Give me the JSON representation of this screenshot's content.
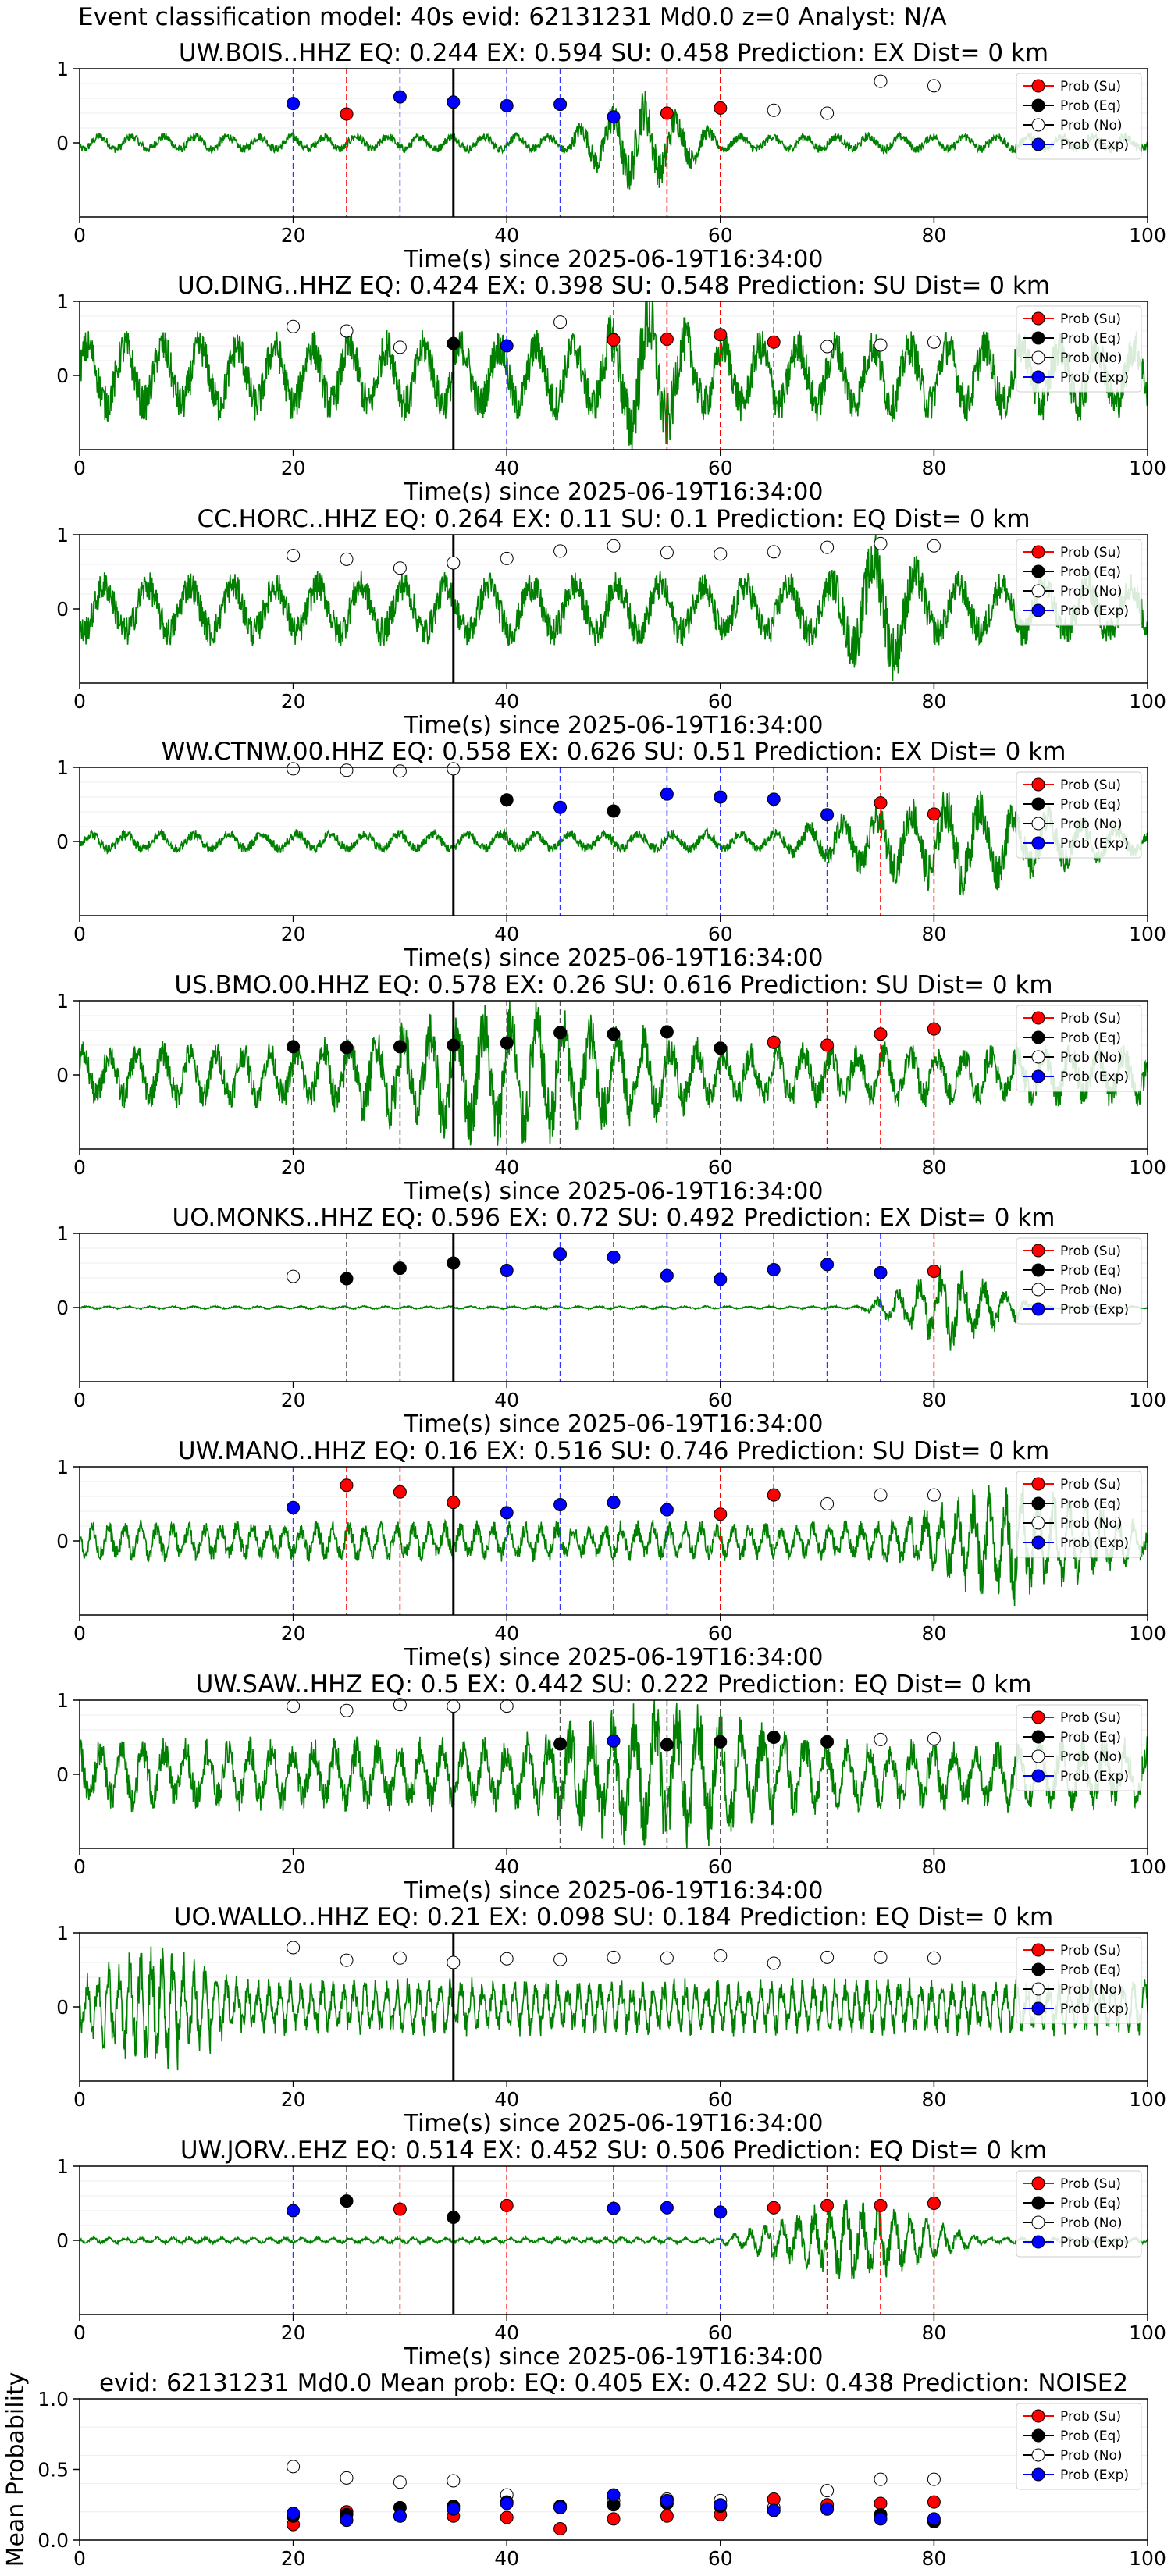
{
  "figure": {
    "suptitle": "Event classification model: 40s evid: 62131231 Md0.0 z=0 Analyst: N/A",
    "colors": {
      "trace": "#008000",
      "su": "#ff0000",
      "eq": "#000000",
      "no": "#ffffff",
      "exp": "#0000ff",
      "origin_line": "#000000"
    },
    "legend_items": [
      "Prob (Su)",
      "Prob (Eq)",
      "Prob (No)",
      "Prob (Exp)"
    ]
  },
  "chart_data": [
    {
      "type": "line",
      "station": "UW.BOIS..HHZ",
      "title": "UW.BOIS..HHZ   EQ: 0.244   EX: 0.594   SU: 0.458   Prediction: EX    Dist= 0 km",
      "xlabel": "Time(s) since 2025-06-19T16:34:00",
      "ylabel": "",
      "xlim": [
        0,
        100
      ],
      "ylim": [
        -1,
        1
      ],
      "xticks": [
        0,
        20,
        40,
        60,
        80,
        100
      ],
      "yticks": [
        0,
        1
      ],
      "origin_time": 35,
      "trace_amp": 0.12,
      "trace_period": 3.0,
      "burst": [
        45,
        60
      ],
      "markers": [
        {
          "x": 20,
          "y": 0.53,
          "cls": "exp"
        },
        {
          "x": 25,
          "y": 0.39,
          "cls": "su"
        },
        {
          "x": 30,
          "y": 0.62,
          "cls": "exp"
        },
        {
          "x": 35,
          "y": 0.55,
          "cls": "exp"
        },
        {
          "x": 40,
          "y": 0.5,
          "cls": "exp"
        },
        {
          "x": 45,
          "y": 0.52,
          "cls": "exp"
        },
        {
          "x": 50,
          "y": 0.35,
          "cls": "exp"
        },
        {
          "x": 55,
          "y": 0.4,
          "cls": "su"
        },
        {
          "x": 60,
          "y": 0.47,
          "cls": "su"
        },
        {
          "x": 65,
          "y": 0.44,
          "cls": "no"
        },
        {
          "x": 70,
          "y": 0.4,
          "cls": "no"
        },
        {
          "x": 75,
          "y": 0.83,
          "cls": "no"
        },
        {
          "x": 80,
          "y": 0.77,
          "cls": "no"
        }
      ]
    },
    {
      "type": "line",
      "station": "UO.DING..HHZ",
      "title": "UO.DING..HHZ   EQ: 0.424   EX: 0.398   SU: 0.548   Prediction: SU    Dist= 0 km",
      "xlabel": "Time(s) since 2025-06-19T16:34:00",
      "ylabel": "",
      "xlim": [
        0,
        100
      ],
      "ylim": [
        -1,
        1
      ],
      "xticks": [
        0,
        20,
        40,
        60,
        80,
        100
      ],
      "yticks": [
        0,
        1
      ],
      "origin_time": 35,
      "trace_amp": 0.55,
      "trace_period": 3.5,
      "burst": [
        48,
        58
      ],
      "markers": [
        {
          "x": 20,
          "y": 0.66,
          "cls": "no"
        },
        {
          "x": 25,
          "y": 0.6,
          "cls": "no"
        },
        {
          "x": 30,
          "y": 0.38,
          "cls": "no"
        },
        {
          "x": 35,
          "y": 0.43,
          "cls": "eq"
        },
        {
          "x": 40,
          "y": 0.4,
          "cls": "exp"
        },
        {
          "x": 45,
          "y": 0.72,
          "cls": "no"
        },
        {
          "x": 50,
          "y": 0.48,
          "cls": "su"
        },
        {
          "x": 55,
          "y": 0.49,
          "cls": "su"
        },
        {
          "x": 60,
          "y": 0.55,
          "cls": "su"
        },
        {
          "x": 65,
          "y": 0.45,
          "cls": "su"
        },
        {
          "x": 70,
          "y": 0.39,
          "cls": "no"
        },
        {
          "x": 75,
          "y": 0.41,
          "cls": "no"
        },
        {
          "x": 80,
          "y": 0.45,
          "cls": "no"
        }
      ]
    },
    {
      "type": "line",
      "station": "CC.HORC..HHZ",
      "title": "CC.HORC..HHZ   EQ: 0.264   EX: 0.11   SU: 0.1   Prediction: EQ    Dist= 0 km",
      "xlabel": "Time(s) since 2025-06-19T16:34:00",
      "ylabel": "",
      "xlim": [
        0,
        100
      ],
      "ylim": [
        -1,
        1
      ],
      "xticks": [
        0,
        20,
        40,
        60,
        80,
        100
      ],
      "yticks": [
        0,
        1
      ],
      "origin_time": 35,
      "trace_amp": 0.45,
      "trace_period": 4.0,
      "burst": [
        70,
        80
      ],
      "markers": [
        {
          "x": 20,
          "y": 0.72,
          "cls": "no"
        },
        {
          "x": 25,
          "y": 0.67,
          "cls": "no"
        },
        {
          "x": 30,
          "y": 0.55,
          "cls": "no"
        },
        {
          "x": 35,
          "y": 0.62,
          "cls": "no"
        },
        {
          "x": 40,
          "y": 0.68,
          "cls": "no"
        },
        {
          "x": 45,
          "y": 0.78,
          "cls": "no"
        },
        {
          "x": 50,
          "y": 0.85,
          "cls": "no"
        },
        {
          "x": 55,
          "y": 0.76,
          "cls": "no"
        },
        {
          "x": 60,
          "y": 0.74,
          "cls": "no"
        },
        {
          "x": 65,
          "y": 0.77,
          "cls": "no"
        },
        {
          "x": 70,
          "y": 0.83,
          "cls": "no"
        },
        {
          "x": 75,
          "y": 0.88,
          "cls": "no"
        },
        {
          "x": 80,
          "y": 0.85,
          "cls": "no"
        }
      ]
    },
    {
      "type": "line",
      "station": "WW.CTNW.00.HHZ",
      "title": "WW.CTNW.00.HHZ   EQ: 0.558   EX: 0.626   SU: 0.51   Prediction: EX    Dist= 0 km",
      "xlabel": "Time(s) since 2025-06-19T16:34:00",
      "ylabel": "",
      "xlim": [
        0,
        100
      ],
      "ylim": [
        -1,
        1
      ],
      "xticks": [
        0,
        20,
        40,
        60,
        80,
        100
      ],
      "yticks": [
        0,
        1
      ],
      "origin_time": 35,
      "trace_amp": 0.14,
      "trace_period": 3.2,
      "burst": [
        65,
        100
      ],
      "markers": [
        {
          "x": 20,
          "y": 0.98,
          "cls": "no"
        },
        {
          "x": 25,
          "y": 0.96,
          "cls": "no"
        },
        {
          "x": 30,
          "y": 0.95,
          "cls": "no"
        },
        {
          "x": 35,
          "y": 0.98,
          "cls": "no"
        },
        {
          "x": 40,
          "y": 0.56,
          "cls": "eq"
        },
        {
          "x": 45,
          "y": 0.46,
          "cls": "exp"
        },
        {
          "x": 50,
          "y": 0.41,
          "cls": "eq"
        },
        {
          "x": 55,
          "y": 0.64,
          "cls": "exp"
        },
        {
          "x": 60,
          "y": 0.6,
          "cls": "exp"
        },
        {
          "x": 65,
          "y": 0.57,
          "cls": "exp"
        },
        {
          "x": 70,
          "y": 0.36,
          "cls": "exp"
        },
        {
          "x": 75,
          "y": 0.52,
          "cls": "su"
        },
        {
          "x": 80,
          "y": 0.37,
          "cls": "su"
        }
      ]
    },
    {
      "type": "line",
      "station": "US.BMO.00.HHZ",
      "title": "US.BMO.00.HHZ   EQ: 0.578   EX: 0.26   SU: 0.616   Prediction: SU    Dist= 0 km",
      "xlabel": "Time(s) since 2025-06-19T16:34:00",
      "ylabel": "",
      "xlim": [
        0,
        100
      ],
      "ylim": [
        -1,
        1
      ],
      "xticks": [
        0,
        20,
        40,
        60,
        80,
        100
      ],
      "yticks": [
        0,
        1
      ],
      "origin_time": 35,
      "trace_amp": 0.4,
      "trace_period": 2.5,
      "burst": [
        20,
        60
      ],
      "markers": [
        {
          "x": 20,
          "y": 0.38,
          "cls": "eq"
        },
        {
          "x": 25,
          "y": 0.37,
          "cls": "eq"
        },
        {
          "x": 30,
          "y": 0.38,
          "cls": "eq"
        },
        {
          "x": 35,
          "y": 0.4,
          "cls": "eq"
        },
        {
          "x": 40,
          "y": 0.43,
          "cls": "eq"
        },
        {
          "x": 45,
          "y": 0.57,
          "cls": "eq"
        },
        {
          "x": 50,
          "y": 0.55,
          "cls": "eq"
        },
        {
          "x": 55,
          "y": 0.58,
          "cls": "eq"
        },
        {
          "x": 60,
          "y": 0.36,
          "cls": "eq"
        },
        {
          "x": 65,
          "y": 0.44,
          "cls": "su"
        },
        {
          "x": 70,
          "y": 0.4,
          "cls": "su"
        },
        {
          "x": 75,
          "y": 0.55,
          "cls": "su"
        },
        {
          "x": 80,
          "y": 0.62,
          "cls": "su"
        }
      ]
    },
    {
      "type": "line",
      "station": "UO.MONKS..HHZ",
      "title": "UO.MONKS..HHZ   EQ: 0.596   EX: 0.72   SU: 0.492   Prediction: EX    Dist= 0 km",
      "xlabel": "Time(s) since 2025-06-19T16:34:00",
      "ylabel": "",
      "xlim": [
        0,
        100
      ],
      "ylim": [
        -1,
        1
      ],
      "xticks": [
        0,
        20,
        40,
        60,
        80,
        100
      ],
      "yticks": [
        0,
        1
      ],
      "origin_time": 35,
      "trace_amp": 0.02,
      "trace_period": 2.0,
      "burst": [
        73,
        90
      ],
      "markers": [
        {
          "x": 20,
          "y": 0.42,
          "cls": "no"
        },
        {
          "x": 25,
          "y": 0.39,
          "cls": "eq"
        },
        {
          "x": 30,
          "y": 0.53,
          "cls": "eq"
        },
        {
          "x": 35,
          "y": 0.6,
          "cls": "eq"
        },
        {
          "x": 40,
          "y": 0.5,
          "cls": "exp"
        },
        {
          "x": 45,
          "y": 0.72,
          "cls": "exp"
        },
        {
          "x": 50,
          "y": 0.68,
          "cls": "exp"
        },
        {
          "x": 55,
          "y": 0.43,
          "cls": "exp"
        },
        {
          "x": 60,
          "y": 0.38,
          "cls": "exp"
        },
        {
          "x": 65,
          "y": 0.51,
          "cls": "exp"
        },
        {
          "x": 70,
          "y": 0.58,
          "cls": "exp"
        },
        {
          "x": 75,
          "y": 0.47,
          "cls": "exp"
        },
        {
          "x": 80,
          "y": 0.49,
          "cls": "su"
        }
      ]
    },
    {
      "type": "line",
      "station": "UW.MANO..HHZ",
      "title": "UW.MANO..HHZ   EQ: 0.16   EX: 0.516   SU: 0.746   Prediction: SU    Dist= 0 km",
      "xlabel": "Time(s) since 2025-06-19T16:34:00",
      "ylabel": "",
      "xlim": [
        0,
        100
      ],
      "ylim": [
        -1,
        1
      ],
      "xticks": [
        0,
        20,
        40,
        60,
        80,
        100
      ],
      "yticks": [
        0,
        1
      ],
      "origin_time": 35,
      "trace_amp": 0.25,
      "trace_period": 1.5,
      "burst": [
        75,
        100
      ],
      "markers": [
        {
          "x": 20,
          "y": 0.45,
          "cls": "exp"
        },
        {
          "x": 25,
          "y": 0.75,
          "cls": "su"
        },
        {
          "x": 30,
          "y": 0.66,
          "cls": "su"
        },
        {
          "x": 35,
          "y": 0.52,
          "cls": "su"
        },
        {
          "x": 40,
          "y": 0.38,
          "cls": "exp"
        },
        {
          "x": 45,
          "y": 0.49,
          "cls": "exp"
        },
        {
          "x": 50,
          "y": 0.52,
          "cls": "exp"
        },
        {
          "x": 55,
          "y": 0.42,
          "cls": "exp"
        },
        {
          "x": 60,
          "y": 0.36,
          "cls": "su"
        },
        {
          "x": 65,
          "y": 0.62,
          "cls": "su"
        },
        {
          "x": 70,
          "y": 0.5,
          "cls": "no"
        },
        {
          "x": 75,
          "y": 0.62,
          "cls": "no"
        },
        {
          "x": 80,
          "y": 0.62,
          "cls": "no"
        }
      ]
    },
    {
      "type": "line",
      "station": "UW.SAW..HHZ",
      "title": "UW.SAW..HHZ   EQ: 0.5   EX: 0.442   SU: 0.222   Prediction: EQ    Dist= 0 km",
      "xlabel": "Time(s) since 2025-06-19T16:34:00",
      "ylabel": "",
      "xlim": [
        0,
        100
      ],
      "ylim": [
        -1,
        1
      ],
      "xticks": [
        0,
        20,
        40,
        60,
        80,
        100
      ],
      "yticks": [
        0,
        1
      ],
      "origin_time": 35,
      "trace_amp": 0.45,
      "trace_period": 2.0,
      "burst": [
        40,
        70
      ],
      "markers": [
        {
          "x": 20,
          "y": 0.92,
          "cls": "no"
        },
        {
          "x": 25,
          "y": 0.86,
          "cls": "no"
        },
        {
          "x": 30,
          "y": 0.94,
          "cls": "no"
        },
        {
          "x": 35,
          "y": 0.92,
          "cls": "no"
        },
        {
          "x": 40,
          "y": 0.92,
          "cls": "no"
        },
        {
          "x": 45,
          "y": 0.41,
          "cls": "eq"
        },
        {
          "x": 50,
          "y": 0.45,
          "cls": "exp"
        },
        {
          "x": 55,
          "y": 0.4,
          "cls": "eq"
        },
        {
          "x": 60,
          "y": 0.44,
          "cls": "eq"
        },
        {
          "x": 65,
          "y": 0.5,
          "cls": "eq"
        },
        {
          "x": 70,
          "y": 0.44,
          "cls": "eq"
        },
        {
          "x": 75,
          "y": 0.47,
          "cls": "no"
        },
        {
          "x": 80,
          "y": 0.48,
          "cls": "no"
        }
      ]
    },
    {
      "type": "line",
      "station": "UO.WALLO..HHZ",
      "title": "UO.WALLO..HHZ   EQ: 0.21   EX: 0.098   SU: 0.184   Prediction: EQ    Dist= 0 km",
      "xlabel": "Time(s) since 2025-06-19T16:34:00",
      "ylabel": "",
      "xlim": [
        0,
        100
      ],
      "ylim": [
        -1,
        1
      ],
      "xticks": [
        0,
        20,
        40,
        60,
        80,
        100
      ],
      "yticks": [
        0,
        1
      ],
      "origin_time": 35,
      "trace_amp": 0.35,
      "trace_period": 1.0,
      "burst": [
        0,
        15
      ],
      "markers": [
        {
          "x": 20,
          "y": 0.8,
          "cls": "no"
        },
        {
          "x": 25,
          "y": 0.63,
          "cls": "no"
        },
        {
          "x": 30,
          "y": 0.66,
          "cls": "no"
        },
        {
          "x": 35,
          "y": 0.6,
          "cls": "no"
        },
        {
          "x": 40,
          "y": 0.65,
          "cls": "no"
        },
        {
          "x": 45,
          "y": 0.64,
          "cls": "no"
        },
        {
          "x": 50,
          "y": 0.67,
          "cls": "no"
        },
        {
          "x": 55,
          "y": 0.66,
          "cls": "no"
        },
        {
          "x": 60,
          "y": 0.69,
          "cls": "no"
        },
        {
          "x": 65,
          "y": 0.59,
          "cls": "no"
        },
        {
          "x": 70,
          "y": 0.67,
          "cls": "no"
        },
        {
          "x": 75,
          "y": 0.67,
          "cls": "no"
        },
        {
          "x": 80,
          "y": 0.66,
          "cls": "no"
        }
      ]
    },
    {
      "type": "line",
      "station": "UW.JORV..EHZ",
      "title": "UW.JORV..EHZ   EQ: 0.514   EX: 0.452   SU: 0.506   Prediction: EQ    Dist= 0 km",
      "xlabel": "Time(s) since 2025-06-19T16:34:00",
      "ylabel": "",
      "xlim": [
        0,
        100
      ],
      "ylim": [
        -1,
        1
      ],
      "xticks": [
        0,
        20,
        40,
        60,
        80,
        100
      ],
      "yticks": [
        0,
        1
      ],
      "origin_time": 35,
      "trace_amp": 0.04,
      "trace_period": 1.5,
      "burst": [
        60,
        85
      ],
      "markers": [
        {
          "x": 20,
          "y": 0.4,
          "cls": "exp"
        },
        {
          "x": 25,
          "y": 0.53,
          "cls": "eq"
        },
        {
          "x": 30,
          "y": 0.42,
          "cls": "su"
        },
        {
          "x": 35,
          "y": 0.31,
          "cls": "eq"
        },
        {
          "x": 40,
          "y": 0.47,
          "cls": "su"
        },
        {
          "x": 50,
          "y": 0.43,
          "cls": "exp"
        },
        {
          "x": 55,
          "y": 0.44,
          "cls": "exp"
        },
        {
          "x": 60,
          "y": 0.38,
          "cls": "exp"
        },
        {
          "x": 65,
          "y": 0.44,
          "cls": "su"
        },
        {
          "x": 70,
          "y": 0.47,
          "cls": "su"
        },
        {
          "x": 75,
          "y": 0.47,
          "cls": "su"
        },
        {
          "x": 80,
          "y": 0.5,
          "cls": "su"
        }
      ]
    },
    {
      "type": "scatter",
      "station": "mean",
      "title": "evid: 62131231  Md0.0   Mean prob:    EQ: 0.405   EX: 0.422   SU: 0.438   Prediction: NOISE2",
      "xlabel": "",
      "ylabel": "Mean Probability",
      "xlim": [
        0,
        100
      ],
      "ylim": [
        0,
        1
      ],
      "xticks": [
        0,
        20,
        40,
        60,
        80,
        100
      ],
      "yticks": [
        0.0,
        0.5,
        1.0
      ],
      "ytick_labels": [
        "0.0",
        "0.5",
        "1.0"
      ],
      "points": [
        {
          "x": 20,
          "su": 0.11,
          "eq": 0.17,
          "no": 0.52,
          "exp": 0.19
        },
        {
          "x": 25,
          "su": 0.2,
          "eq": 0.18,
          "no": 0.44,
          "exp": 0.14
        },
        {
          "x": 30,
          "su": 0.17,
          "eq": 0.23,
          "no": 0.41,
          "exp": 0.17
        },
        {
          "x": 35,
          "su": 0.17,
          "eq": 0.24,
          "no": 0.42,
          "exp": 0.22
        },
        {
          "x": 40,
          "su": 0.16,
          "eq": 0.27,
          "no": 0.32,
          "exp": 0.26
        },
        {
          "x": 45,
          "su": 0.08,
          "eq": 0.24,
          "no": 0.23,
          "exp": 0.23
        },
        {
          "x": 50,
          "su": 0.15,
          "eq": 0.25,
          "no": 0.28,
          "exp": 0.32
        },
        {
          "x": 55,
          "su": 0.17,
          "eq": 0.26,
          "no": 0.29,
          "exp": 0.28
        },
        {
          "x": 60,
          "su": 0.18,
          "eq": 0.24,
          "no": 0.28,
          "exp": 0.25
        },
        {
          "x": 65,
          "su": 0.29,
          "eq": 0.21,
          "no": 0.23,
          "exp": 0.21
        },
        {
          "x": 70,
          "su": 0.25,
          "eq": 0.22,
          "no": 0.35,
          "exp": 0.22
        },
        {
          "x": 75,
          "su": 0.26,
          "eq": 0.18,
          "no": 0.43,
          "exp": 0.15
        },
        {
          "x": 80,
          "su": 0.27,
          "eq": 0.13,
          "no": 0.43,
          "exp": 0.15
        }
      ]
    }
  ]
}
